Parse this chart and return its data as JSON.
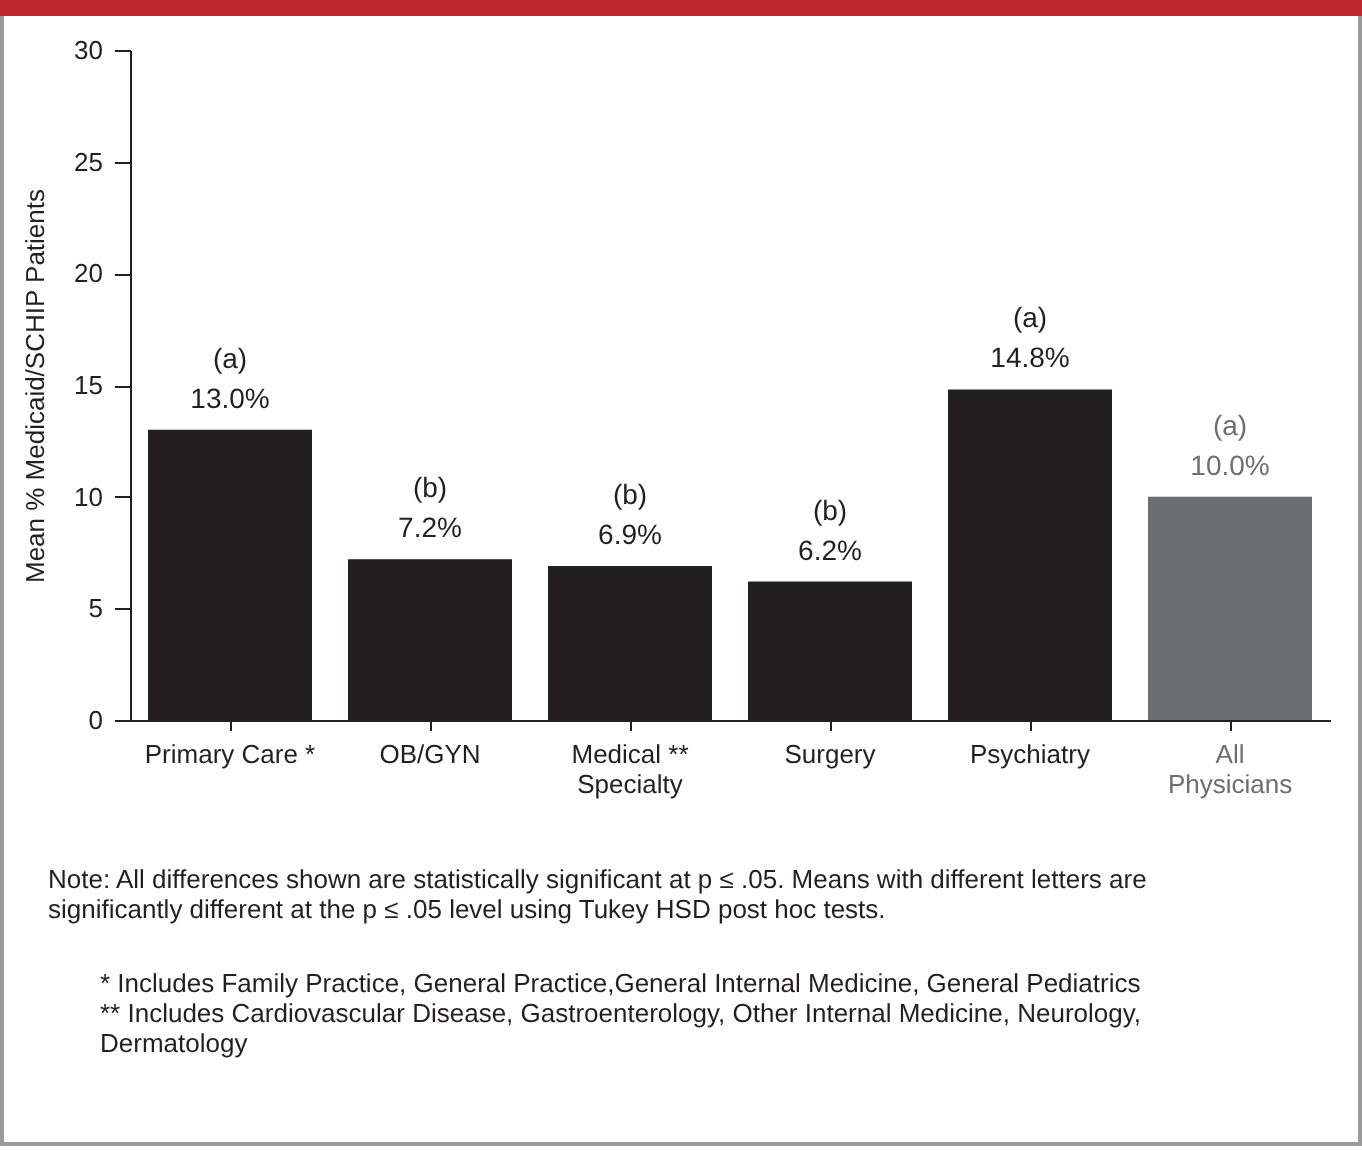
{
  "chart_data": {
    "type": "bar",
    "ylabel": "Mean % Medicaid/SCHIP Patients",
    "categories": [
      "Primary Care *",
      "OB/GYN",
      "Medical **\nSpecialty",
      "Surgery",
      "Psychiatry",
      "All\nPhysicians"
    ],
    "values": [
      13.0,
      7.2,
      6.9,
      6.2,
      14.8,
      10.0
    ],
    "colors": [
      "#231f20",
      "#231f20",
      "#231f20",
      "#231f20",
      "#231f20",
      "#6d6e70"
    ],
    "value_labels": [
      "(a)\n13.0%",
      "(b)\n7.2%",
      "(b)\n6.9%",
      "(b)\n6.2%",
      "(a)\n14.8%",
      "(a)\n10.0%"
    ],
    "ylim": [
      0,
      30
    ],
    "yticks": [
      0,
      5,
      10,
      15,
      20,
      25,
      30
    ],
    "grid": false,
    "legend": false,
    "annotations": [
      "Note: All differences shown are statistically significant at p ≤ .05. Means with different letters are significantly different at the p ≤ .05 level using Tukey HSD post hoc tests.",
      "* Includes Family Practice, General Practice,General Internal Medicine, General Pediatrics",
      "** Includes Cardiovascular Disease, Gastroenterology, Other Internal Medicine, Neurology, Dermatology"
    ]
  }
}
